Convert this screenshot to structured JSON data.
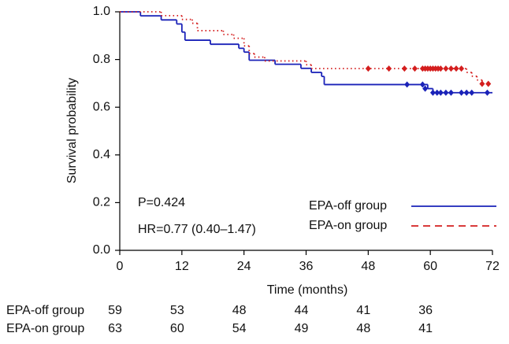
{
  "chart_data": {
    "type": "step",
    "y_label": "Survival probability",
    "x_label": "Time (months)",
    "xlim": [
      0,
      72
    ],
    "xticks": [
      0,
      12,
      24,
      36,
      48,
      60,
      72
    ],
    "ylim": [
      0,
      1
    ],
    "yticks": [
      {
        "value": 0,
        "label": "0.0"
      },
      {
        "value": 0.2,
        "label": "0.2"
      },
      {
        "value": 0.4,
        "label": "0.4"
      },
      {
        "value": 0.6,
        "label": "0.6"
      },
      {
        "value": 0.8,
        "label": "0.8"
      },
      {
        "value": 1,
        "label": "1.0"
      }
    ],
    "annotations": [
      "P=0.424",
      "HR=0.77 (0.40–1.47)"
    ],
    "series": [
      {
        "name": "EPA-off group",
        "color": "#1a22b8",
        "line_style": "solid",
        "x": [
          0,
          4,
          8,
          11,
          12,
          12.6,
          17.5,
          23,
          24,
          25,
          30,
          35,
          37,
          39,
          39.5,
          59.5,
          60.5,
          72
        ],
        "values": [
          1,
          0.983,
          0.966,
          0.949,
          0.915,
          0.881,
          0.864,
          0.847,
          0.831,
          0.797,
          0.78,
          0.763,
          0.746,
          0.729,
          0.695,
          0.678,
          0.661,
          0.661
        ],
        "censored_x": [
          55.5,
          58.5,
          59,
          60.5,
          61.3,
          62,
          63,
          64,
          66,
          67,
          68,
          71
        ],
        "censored_values": [
          0.695,
          0.695,
          0.678,
          0.661,
          0.661,
          0.661,
          0.661,
          0.661,
          0.661,
          0.661,
          0.661,
          0.661
        ]
      },
      {
        "name": "EPA-on group",
        "color": "#d41e1e",
        "line_style": "dotted",
        "x": [
          0,
          8,
          12,
          14,
          15,
          20,
          22,
          24,
          25,
          26,
          28,
          36,
          37,
          67,
          68,
          69,
          70,
          71.5
        ],
        "values": [
          1,
          0.984,
          0.968,
          0.952,
          0.921,
          0.905,
          0.889,
          0.857,
          0.825,
          0.81,
          0.794,
          0.778,
          0.762,
          0.746,
          0.73,
          0.714,
          0.698,
          0.698
        ],
        "censored_x": [
          48,
          52,
          55,
          57,
          58.5,
          59,
          59.5,
          60,
          60.5,
          61,
          61.5,
          62,
          63,
          64,
          65,
          66,
          70,
          71.2
        ],
        "censored_values": [
          0.762,
          0.762,
          0.762,
          0.762,
          0.762,
          0.762,
          0.762,
          0.762,
          0.762,
          0.762,
          0.762,
          0.762,
          0.762,
          0.762,
          0.762,
          0.762,
          0.698,
          0.698
        ]
      }
    ],
    "legend_position": "lower right",
    "risk_table": [
      {
        "name": "EPA-off group",
        "counts": [
          59,
          53,
          48,
          44,
          41,
          36
        ]
      },
      {
        "name": "EPA-on group",
        "counts": [
          63,
          60,
          54,
          49,
          48,
          41
        ]
      }
    ]
  }
}
